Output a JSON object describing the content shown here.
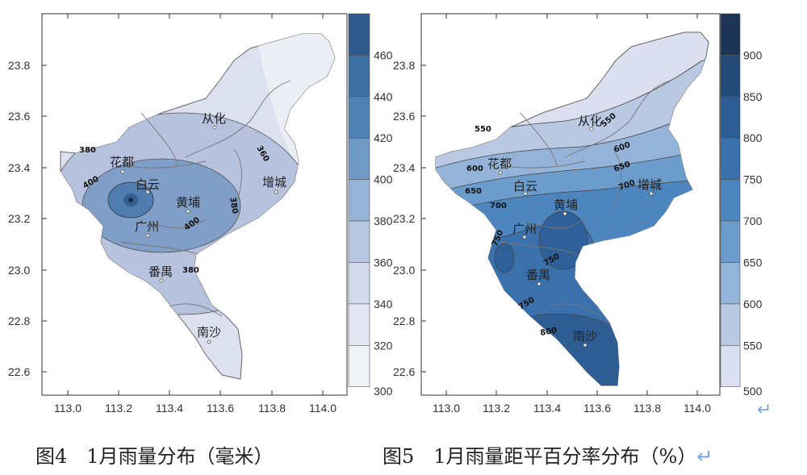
{
  "maps": [
    {
      "id": "rainfall",
      "y_ticks": [
        "23.8",
        "23.6",
        "23.4",
        "23.2",
        "23.0",
        "22.8",
        "22.6"
      ],
      "x_ticks": [
        "113.0",
        "113.2",
        "113.4",
        "113.6",
        "113.8",
        "114.0"
      ],
      "legend": {
        "labels": [
          "460",
          "440",
          "420",
          "400",
          "380",
          "360",
          "340",
          "320",
          "300"
        ],
        "colors": [
          "#2f5b8c",
          "#3c6fa2",
          "#4e82b5",
          "#6f9ac6",
          "#95b3d6",
          "#b7c7e2",
          "#d3daec",
          "#e4e7f3",
          "#f1f2f8"
        ]
      },
      "contour_labels": [
        "380",
        "360",
        "400",
        "380",
        "400",
        "380"
      ],
      "places": [
        "从化",
        "花都",
        "增城",
        "白云",
        "黄埔",
        "广州",
        "番禺",
        "南沙"
      ],
      "caption": "图4　1月雨量分布（毫米）"
    },
    {
      "id": "anomaly",
      "y_ticks": [
        "23.8",
        "23.6",
        "23.4",
        "23.2",
        "23.0",
        "22.8",
        "22.6"
      ],
      "x_ticks": [
        "113.0",
        "113.2",
        "113.4",
        "113.6",
        "113.8",
        "114.0"
      ],
      "legend": {
        "labels": [
          "900",
          "850",
          "800",
          "750",
          "700",
          "650",
          "600",
          "550",
          "500"
        ],
        "colors": [
          "#1d3557",
          "#244a78",
          "#2d5d93",
          "#3a71ad",
          "#4d86bf",
          "#6c9ccb",
          "#93b4d8",
          "#b9c9e4",
          "#dcdff0"
        ]
      },
      "contour_labels": [
        "550",
        "550",
        "600",
        "600",
        "650",
        "650",
        "700",
        "700",
        "750",
        "750",
        "750",
        "800"
      ],
      "places": [
        "从化",
        "花都",
        "增城",
        "白云",
        "黄埔",
        "广州",
        "番禺",
        "南沙"
      ],
      "caption": "图5　1月雨量距平百分率分布（%）"
    }
  ],
  "return_mark": "↵"
}
